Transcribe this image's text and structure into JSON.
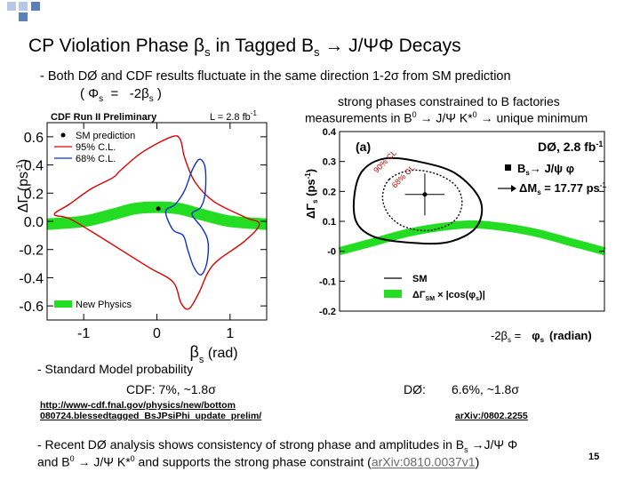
{
  "slide": {
    "title_main": "CP Violation Phase ",
    "title_beta": "β",
    "title_s": "s",
    "title_rest": " in Tagged B",
    "title_bs": "s",
    "title_end": " → J/ΨΦ Decays",
    "line1": "- Both DØ and CDF results fluctuate in the same direction 1-2σ from SM prediction",
    "relation": "( Φ",
    "relation_s": "s",
    "relation_eq": "  =   -2β",
    "relation_s2": "s",
    "relation_close": " )",
    "strong1": "strong phases constrained to B factories",
    "strong2": "measurements in B",
    "strong2_sup": "0",
    "strong2_rest": " → J/Ψ K*",
    "strong2_sup2": "0",
    "strong2_end": " → unique minimum",
    "sm_prob": "- Standard Model probability",
    "cdf_prob": "CDF:   7%, ~1.8σ",
    "d0_label": "DØ:",
    "d0_prob": "6.6%,  ~1.8σ",
    "link_cdf_1": "http://www-cdf.fnal.gov/physics/new/bottom",
    "link_cdf_2": "080724.blessedtagged_BsJPsiPhi_update_prelim/",
    "link_d0": "arXiv:/0802.2255",
    "recent1": "- Recent DØ analysis shows consistency of strong phase and amplitudes in B",
    "recent1_s": "s",
    "recent1_end": " →J/Ψ  Φ",
    "recent2": "and B",
    "recent2_sup": "0",
    "recent2_mid": " → J/Ψ  K*",
    "recent2_sup2": "0",
    "recent2_rest": " and supports the strong phase constraint (",
    "recent2_link": "arXiv:0810.0037v1",
    "recent2_close": ")",
    "page_number": "15",
    "colors": {
      "green": "#22dd22",
      "red": "#e00000",
      "blue": "#1030cc",
      "deco_blue": "#5b80b8",
      "deco_light": "#b6c8e4"
    }
  },
  "chart_data": [
    {
      "type": "scatter",
      "title": "CDF Run II Preliminary",
      "luminosity": "L = 2.8 fb",
      "luminosity_sup": "-1",
      "xlabel": "β",
      "xlabel_sub": "s",
      "xlabel_unit": " (rad)",
      "ylabel": "ΔΓ (ps",
      "ylabel_sup": "-1",
      "ylabel_close": ")",
      "xlim": [
        -1.5,
        1.5
      ],
      "ylim": [
        -0.7,
        0.7
      ],
      "xticks": [
        {
          "value": -1,
          "label": "-1"
        },
        {
          "value": 0,
          "label": "0"
        },
        {
          "value": 1,
          "label": "1"
        }
      ],
      "yticks": [
        {
          "value": 0.6,
          "label": "0.6"
        },
        {
          "value": 0.4,
          "label": "0.4"
        },
        {
          "value": 0.2,
          "label": "0.2"
        },
        {
          "value": 0.0,
          "label": "0.0"
        },
        {
          "value": -0.2,
          "label": "-0.2"
        },
        {
          "value": -0.4,
          "label": "-0.4"
        },
        {
          "value": -0.6,
          "label": "-0.6"
        }
      ],
      "legend": {
        "placement": "top-left",
        "entries": [
          {
            "label": "SM prediction",
            "marker": "point"
          },
          {
            "label": "95% C.L.",
            "color": "#e00000"
          },
          {
            "label": "68% C.L.",
            "color": "#1030cc"
          }
        ]
      },
      "band_label": "New Physics",
      "sm_point": {
        "x": 0.02,
        "y": 0.09
      },
      "contours": [
        {
          "name": "95% C.L.",
          "color": "#e00000",
          "points": [
            [
              -0.6,
              0.31
            ],
            [
              -0.5,
              0.36
            ],
            [
              -0.2,
              0.49
            ],
            [
              0.2,
              0.6
            ],
            [
              0.32,
              0.58
            ],
            [
              0.38,
              0.45
            ],
            [
              0.52,
              0.28
            ],
            [
              0.78,
              0.14
            ],
            [
              1.2,
              0.03
            ],
            [
              1.4,
              -0.02
            ],
            [
              1.2,
              -0.14
            ],
            [
              0.85,
              -0.27
            ],
            [
              0.7,
              -0.36
            ],
            [
              0.58,
              -0.5
            ],
            [
              0.44,
              -0.62
            ],
            [
              0.33,
              -0.58
            ],
            [
              0.22,
              -0.43
            ],
            [
              -0.1,
              -0.33
            ],
            [
              -0.5,
              -0.2
            ],
            [
              -0.9,
              -0.07
            ],
            [
              -1.2,
              0.02
            ],
            [
              -1.4,
              0.05
            ],
            [
              -1.2,
              0.12
            ],
            [
              -0.9,
              0.23
            ]
          ]
        },
        {
          "name": "68% C.L.",
          "color": "#1030cc",
          "points": [
            [
              0.12,
              0.07
            ],
            [
              0.25,
              0.12
            ],
            [
              0.38,
              0.22
            ],
            [
              0.48,
              0.36
            ],
            [
              0.58,
              0.44
            ],
            [
              0.66,
              0.38
            ],
            [
              0.66,
              0.2
            ],
            [
              0.6,
              0.1
            ],
            [
              0.48,
              0.05
            ],
            [
              0.62,
              -0.05
            ],
            [
              0.7,
              -0.15
            ],
            [
              0.68,
              -0.3
            ],
            [
              0.6,
              -0.38
            ],
            [
              0.5,
              -0.32
            ],
            [
              0.42,
              -0.2
            ],
            [
              0.36,
              -0.1
            ],
            [
              0.22,
              -0.06
            ]
          ]
        }
      ],
      "band_center": [
        [
          -1.5,
          -0.02
        ],
        [
          -1.0,
          0.0
        ],
        [
          -0.6,
          0.05
        ],
        [
          -0.3,
          0.09
        ],
        [
          0.0,
          0.1
        ],
        [
          0.3,
          0.09
        ],
        [
          0.6,
          0.05
        ],
        [
          1.0,
          0.0
        ],
        [
          1.5,
          -0.02
        ]
      ]
    },
    {
      "type": "scatter",
      "panel": "(a)",
      "experiment_label": "DØ, 2.8 fb",
      "experiment_sup": "-1",
      "xlabel": "-2β",
      "xlabel_sub": "s",
      "xlabel_eq": " =",
      "xlabel_phi": "φ",
      "xlabel_phi_sub": "s",
      "xlabel_unit": "(radian)",
      "ylabel": "ΔΓ",
      "ylabel_sub": "s",
      "ylabel_unit": " (ps",
      "ylabel_sup": "-1",
      "ylabel_close": ")",
      "xlim": [
        -1.6,
        1.6
      ],
      "ylim": [
        -0.2,
        0.4
      ],
      "yticks": [
        {
          "value": 0.4,
          "label": "0.4"
        },
        {
          "value": 0.3,
          "label": "0.3"
        },
        {
          "value": 0.2,
          "label": "0.2"
        },
        {
          "value": 0.1,
          "label": "0.1"
        },
        {
          "value": 0.0,
          "label": "-0"
        },
        {
          "value": -0.1,
          "label": "-0.1"
        },
        {
          "value": -0.2,
          "label": "-0.2"
        }
      ],
      "contour_labels": [
        "90% CL",
        "68% CL"
      ],
      "legend_top": [
        {
          "label": "B",
          "sub": "s",
          "rest": "→ J/ψ φ",
          "marker": "square"
        },
        {
          "label": "ΔM",
          "sub": "s",
          "rest": "= 17.77 ps",
          "sup": "-1",
          "marker": "arrow"
        }
      ],
      "legend_bottom": [
        {
          "label": "SM",
          "marker": "line"
        },
        {
          "label": "ΔΓ",
          "sub": "SM",
          "rest": " × |cos(φ",
          "sub2": "s",
          "close": ")|",
          "marker": "green"
        }
      ],
      "best_fit": {
        "x": -0.57,
        "y": 0.19
      },
      "best_fit_err": {
        "x": 0.24,
        "y": 0.07
      },
      "contours": [
        {
          "name": "90% CL",
          "color": "#000000",
          "dash": false,
          "points": [
            [
              -1.32,
              0.27
            ],
            [
              -1.05,
              0.31
            ],
            [
              -0.65,
              0.3
            ],
            [
              -0.2,
              0.26
            ],
            [
              0.1,
              0.17
            ],
            [
              0.05,
              0.08
            ],
            [
              -0.3,
              0.03
            ],
            [
              -0.8,
              0.03
            ],
            [
              -1.2,
              0.05
            ],
            [
              -1.4,
              0.1
            ],
            [
              -1.42,
              0.19
            ]
          ]
        },
        {
          "name": "68% CL",
          "color": "#000000",
          "dash": true,
          "points": [
            [
              -1.0,
              0.24
            ],
            [
              -0.75,
              0.27
            ],
            [
              -0.45,
              0.26
            ],
            [
              -0.2,
              0.22
            ],
            [
              -0.12,
              0.16
            ],
            [
              -0.22,
              0.1
            ],
            [
              -0.5,
              0.07
            ],
            [
              -0.8,
              0.08
            ],
            [
              -1.0,
              0.12
            ],
            [
              -1.08,
              0.18
            ]
          ]
        }
      ],
      "band_center": [
        [
          -1.6,
          0.0
        ],
        [
          -1.2,
          0.03
        ],
        [
          -0.8,
          0.06
        ],
        [
          -0.4,
          0.08
        ],
        [
          0.0,
          0.09
        ],
        [
          0.4,
          0.08
        ],
        [
          0.8,
          0.06
        ],
        [
          1.2,
          0.03
        ],
        [
          1.6,
          0.0
        ]
      ]
    }
  ]
}
